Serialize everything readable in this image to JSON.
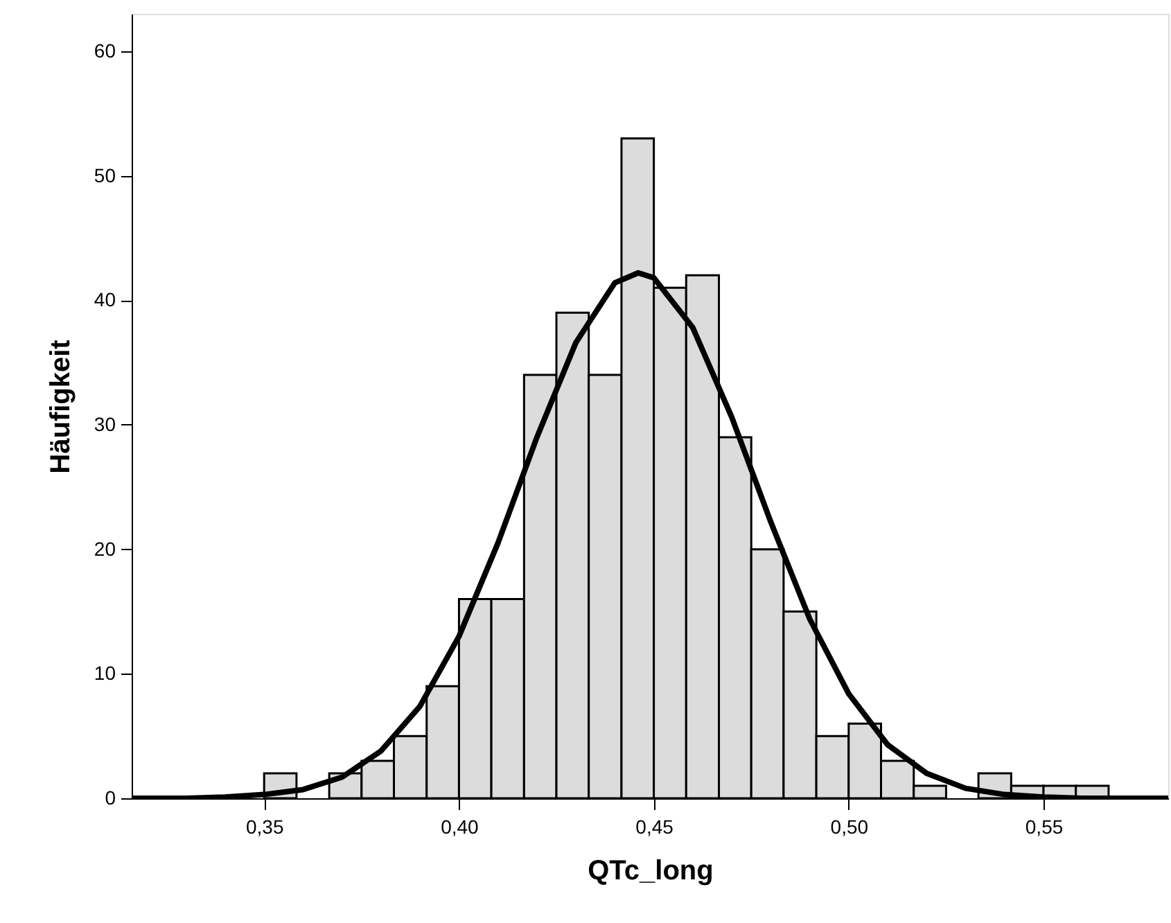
{
  "chart_data": {
    "type": "histogram",
    "xlabel": "QTc_long",
    "ylabel": "Häufigkeit",
    "bins": [
      0.35,
      0.3583,
      0.3667,
      0.375,
      0.3833,
      0.3917,
      0.4,
      0.4083,
      0.4167,
      0.425,
      0.4333,
      0.4417,
      0.45,
      0.4583,
      0.4667,
      0.475,
      0.4833,
      0.4917,
      0.5,
      0.5083,
      0.5167,
      0.525,
      0.5333,
      0.5417,
      0.55,
      0.5583,
      0.5667
    ],
    "values": [
      2,
      0,
      2,
      3,
      5,
      9,
      16,
      16,
      34,
      39,
      34,
      53,
      41,
      42,
      29,
      20,
      15,
      5,
      6,
      3,
      1,
      0,
      2,
      1,
      1,
      1
    ],
    "color": "#dcdcdc",
    "series": [
      {
        "type": "line",
        "color": "#000000",
        "x": [
          0.316,
          0.32,
          0.33,
          0.34,
          0.35,
          0.36,
          0.37,
          0.38,
          0.39,
          0.4,
          0.41,
          0.42,
          0.43,
          0.44,
          0.446,
          0.45,
          0.46,
          0.47,
          0.48,
          0.49,
          0.5,
          0.51,
          0.52,
          0.53,
          0.54,
          0.55,
          0.56,
          0.57,
          0.582
        ],
        "values": [
          0.0,
          0.0,
          0.0,
          0.1,
          0.3,
          0.7,
          1.7,
          3.8,
          7.4,
          13.0,
          20.5,
          29.0,
          36.6,
          41.4,
          42.2,
          41.8,
          37.8,
          30.6,
          22.2,
          14.4,
          8.4,
          4.3,
          2.0,
          0.8,
          0.3,
          0.1,
          0.0,
          0.0,
          0.0
        ]
      }
    ],
    "xlim": [
      0.316,
      0.582
    ],
    "xticks": [
      {
        "value": 0.35,
        "label": "0,35"
      },
      {
        "value": 0.4,
        "label": "0,40"
      },
      {
        "value": 0.45,
        "label": "0,45"
      },
      {
        "value": 0.5,
        "label": "0,50"
      },
      {
        "value": 0.55,
        "label": "0,55"
      }
    ],
    "ylim": [
      0,
      63
    ],
    "yticks": [
      0,
      10,
      20,
      30,
      40,
      50,
      60
    ],
    "grid": false
  }
}
